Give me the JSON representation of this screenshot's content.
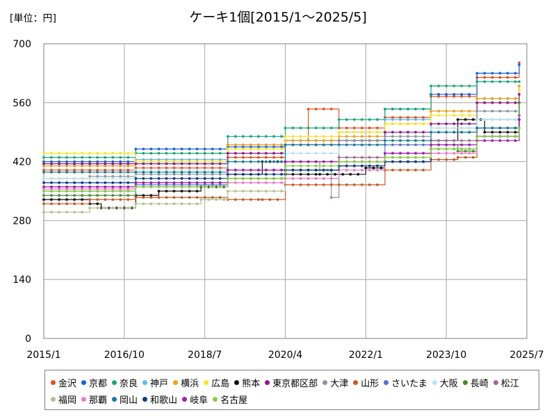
{
  "chart_data": {
    "type": "line",
    "title": "ケーキ1個[2015/1〜2025/5]",
    "unit_label": "[単位：円]",
    "ylim": [
      0,
      700
    ],
    "y_ticks": [
      "0",
      "140",
      "280",
      "420",
      "560",
      "700"
    ],
    "x_ticks": [
      "2015/1",
      "2016/10",
      "2018/7",
      "2020/4",
      "2022/1",
      "2023/10",
      "2025/7"
    ],
    "grid": true,
    "legend_position": "bottom",
    "series": [
      {
        "name": "金沢",
        "color": "#e8501e",
        "x": [
          "2015/1",
          "2017/1",
          "2019/1",
          "2020/4",
          "2020/10",
          "2021/6",
          "2022/6",
          "2023/6",
          "2024/6",
          "2025/5"
        ],
        "values": [
          400,
          405,
          430,
          470,
          545,
          500,
          525,
          575,
          620,
          655
        ]
      },
      {
        "name": "京都",
        "color": "#1f5fd6",
        "x": [
          "2015/1",
          "2017/1",
          "2019/1",
          "2020/4",
          "2021/6",
          "2022/6",
          "2023/6",
          "2024/6",
          "2025/5"
        ],
        "values": [
          420,
          450,
          455,
          470,
          470,
          545,
          580,
          630,
          650
        ]
      },
      {
        "name": "奈良",
        "color": "#1aa67a",
        "x": [
          "2015/1",
          "2017/1",
          "2019/1",
          "2020/4",
          "2021/6",
          "2022/6",
          "2023/6",
          "2024/6",
          "2025/5"
        ],
        "values": [
          430,
          440,
          480,
          500,
          520,
          545,
          600,
          610,
          610
        ]
      },
      {
        "name": "神戸",
        "color": "#60b8e6",
        "x": [
          "2015/1",
          "2017/1",
          "2019/1",
          "2020/4",
          "2021/6",
          "2022/6",
          "2023/6",
          "2024/6",
          "2025/5"
        ],
        "values": [
          410,
          425,
          460,
          470,
          490,
          520,
          540,
          570,
          590
        ]
      },
      {
        "name": "横浜",
        "color": "#f0a020",
        "x": [
          "2015/1",
          "2017/1",
          "2019/1",
          "2020/4",
          "2021/6",
          "2022/6",
          "2023/6",
          "2024/6",
          "2025/5"
        ],
        "values": [
          410,
          420,
          460,
          470,
          480,
          510,
          540,
          570,
          600
        ]
      },
      {
        "name": "広島",
        "color": "#f5e52a",
        "x": [
          "2015/1",
          "2017/1",
          "2019/1",
          "2020/4",
          "2021/6",
          "2022/6",
          "2023/6",
          "2024/6",
          "2025/5"
        ],
        "values": [
          440,
          420,
          450,
          480,
          490,
          510,
          530,
          560,
          590
        ]
      },
      {
        "name": "熊本",
        "color": "#111111",
        "x": [
          "2015/1",
          "2016/1",
          "2016/4",
          "2017/1",
          "2017/7",
          "2018/6",
          "2019/1",
          "2019/10",
          "2020/4",
          "2021/1",
          "2022/1",
          "2022/6",
          "2023/6",
          "2024/1",
          "2024/8",
          "2025/5"
        ],
        "values": [
          330,
          320,
          310,
          340,
          350,
          360,
          390,
          420,
          390,
          390,
          405,
          420,
          470,
          520,
          490,
          560
        ]
      },
      {
        "name": "東京都区部",
        "color": "#8a1a8a",
        "x": [
          "2015/1",
          "2017/1",
          "2019/1",
          "2020/4",
          "2021/6",
          "2022/6",
          "2023/6",
          "2024/6",
          "2025/5"
        ],
        "values": [
          415,
          415,
          440,
          460,
          470,
          490,
          510,
          560,
          580
        ]
      },
      {
        "name": "大津",
        "color": "#8a94a0",
        "x": [
          "2015/1",
          "2016/1",
          "2017/1",
          "2019/1",
          "2020/4",
          "2021/1",
          "2021/4",
          "2021/6",
          "2022/6",
          "2023/6",
          "2024/6",
          "2025/5"
        ],
        "values": [
          380,
          385,
          390,
          400,
          420,
          400,
          335,
          470,
          480,
          500,
          540,
          560
        ]
      },
      {
        "name": "山形",
        "color": "#c45a28",
        "x": [
          "2015/1",
          "2016/1",
          "2017/1",
          "2019/1",
          "2019/10",
          "2020/4",
          "2021/6",
          "2022/6",
          "2023/6",
          "2024/1",
          "2024/6",
          "2025/5"
        ],
        "values": [
          320,
          330,
          335,
          330,
          330,
          365,
          365,
          400,
          425,
          430,
          480,
          530
        ]
      },
      {
        "name": "さいたま",
        "color": "#5a70d0",
        "x": [
          "2015/1",
          "2017/1",
          "2019/1",
          "2020/4",
          "2021/6",
          "2022/6",
          "2023/6",
          "2024/6",
          "2025/5"
        ],
        "values": [
          350,
          365,
          380,
          400,
          420,
          460,
          490,
          520,
          520
        ]
      },
      {
        "name": "大阪",
        "color": "#b8e6f0",
        "x": [
          "2015/1",
          "2017/1",
          "2019/1",
          "2020/4",
          "2021/6",
          "2022/6",
          "2023/6",
          "2024/6",
          "2025/5"
        ],
        "values": [
          380,
          400,
          420,
          440,
          460,
          470,
          500,
          520,
          540
        ]
      },
      {
        "name": "長崎",
        "color": "#4a8a30",
        "x": [
          "2015/1",
          "2017/1",
          "2019/1",
          "2020/4",
          "2021/6",
          "2022/6",
          "2023/6",
          "2024/1",
          "2024/6",
          "2025/5"
        ],
        "values": [
          340,
          360,
          380,
          400,
          410,
          420,
          460,
          445,
          500,
          560
        ]
      },
      {
        "name": "松江",
        "color": "#9a6a9a",
        "x": [
          "2015/1",
          "2017/1",
          "2019/1",
          "2020/4",
          "2021/6",
          "2022/6",
          "2023/6",
          "2024/6",
          "2025/5"
        ],
        "values": [
          360,
          370,
          400,
          420,
          430,
          440,
          470,
          500,
          530
        ]
      },
      {
        "name": "福岡",
        "color": "#b4c090",
        "x": [
          "2015/1",
          "2016/1",
          "2017/1",
          "2018/6",
          "2019/1",
          "2020/4",
          "2021/6",
          "2022/6",
          "2023/6",
          "2024/6",
          "2025/5"
        ],
        "values": [
          300,
          310,
          320,
          330,
          350,
          380,
          410,
          430,
          460,
          480,
          500
        ]
      },
      {
        "name": "那覇",
        "color": "#f07ac0",
        "x": [
          "2015/1",
          "2017/1",
          "2019/1",
          "2020/4",
          "2021/6",
          "2022/6",
          "2023/6",
          "2024/6",
          "2025/5"
        ],
        "values": [
          355,
          360,
          370,
          380,
          400,
          420,
          440,
          480,
          500
        ]
      },
      {
        "name": "岡山",
        "color": "#1a7a9a",
        "x": [
          "2015/1",
          "2017/1",
          "2019/1",
          "2020/4",
          "2021/6",
          "2022/6",
          "2023/6",
          "2024/6",
          "2025/5"
        ],
        "values": [
          395,
          395,
          420,
          460,
          460,
          470,
          490,
          500,
          520
        ]
      },
      {
        "name": "和歌山",
        "color": "#0a3a8a",
        "x": [
          "2015/1",
          "2017/1",
          "2019/1",
          "2020/4",
          "2021/6",
          "2022/6",
          "2023/6",
          "2024/6",
          "2025/5"
        ],
        "values": [
          370,
          380,
          390,
          400,
          410,
          420,
          450,
          480,
          520
        ]
      },
      {
        "name": "岐阜",
        "color": "#a020b0",
        "x": [
          "2015/1",
          "2017/1",
          "2019/1",
          "2020/4",
          "2021/6",
          "2022/6",
          "2023/6",
          "2024/6",
          "2025/5"
        ],
        "values": [
          360,
          370,
          400,
          420,
          420,
          440,
          460,
          470,
          520
        ]
      },
      {
        "name": "名古屋",
        "color": "#88cc44",
        "x": [
          "2015/1",
          "2017/1",
          "2019/1",
          "2020/4",
          "2021/6",
          "2022/6",
          "2023/6",
          "2024/6",
          "2025/5"
        ],
        "values": [
          350,
          360,
          380,
          410,
          420,
          430,
          450,
          480,
          500
        ]
      }
    ]
  }
}
